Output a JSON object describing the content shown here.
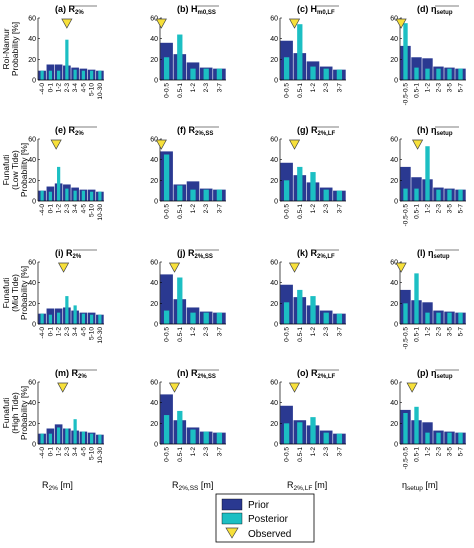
{
  "colors": {
    "prior": "#2a3991",
    "posterior": "#1cbfc3",
    "observed": "#f7e03a",
    "observed_stroke": "#444444"
  },
  "row_labels": [
    [
      "Roi-Namur",
      "Probability [%]"
    ],
    [
      "Funafuti",
      "(Low Tide)",
      "Probability [%]"
    ],
    [
      "Funafuti",
      "(Mid Tide)",
      "Probability [%]"
    ],
    [
      "Funafuti",
      "(High Tide)",
      "Probability [%]"
    ]
  ],
  "x_axis_labels": [
    "R2% [m]",
    "R2%,SS [m]",
    "R2%,LF [m]",
    "ηsetup [m]"
  ],
  "legend": {
    "prior": "Prior",
    "posterior": "Posterior",
    "observed": "Observed"
  },
  "chart_data": [
    {
      "type": "bar",
      "title": "(a) R2%",
      "ylim": [
        0,
        60
      ],
      "yticks": [
        0,
        20,
        40,
        60
      ],
      "categories": [
        "-4-0",
        "0-1",
        "1-2",
        "2-3",
        "3-4",
        "4-5",
        "5-10",
        "10-30"
      ],
      "series": [
        {
          "name": "Prior",
          "values": [
            9,
            15,
            15,
            14,
            12,
            11,
            10,
            9
          ]
        },
        {
          "name": "Posterior",
          "values": [
            9,
            9,
            9,
            39,
            10,
            9,
            9,
            9
          ]
        }
      ],
      "observed": 3.5
    },
    {
      "type": "bar",
      "title": "(b) Hm0,SS",
      "ylim": [
        0,
        60
      ],
      "yticks": [
        0,
        20,
        40,
        60
      ],
      "categories": [
        "0-0.5",
        "0.5-1",
        "1-2",
        "2-3",
        "3-7"
      ],
      "series": [
        {
          "name": "Prior",
          "values": [
            36,
            25,
            17,
            12,
            11
          ]
        },
        {
          "name": "Posterior",
          "values": [
            22,
            44,
            11,
            11,
            11
          ]
        }
      ],
      "observed": 0.1
    },
    {
      "type": "bar",
      "title": "(c) Hm0,LF",
      "ylim": [
        0,
        60
      ],
      "yticks": [
        0,
        20,
        40,
        60
      ],
      "categories": [
        "0-0.5",
        "0.5-1",
        "1-2",
        "2-3",
        "3-7"
      ],
      "series": [
        {
          "name": "Prior",
          "values": [
            38,
            26,
            18,
            13,
            10
          ]
        },
        {
          "name": "Posterior",
          "values": [
            22,
            54,
            13,
            11,
            10
          ]
        }
      ],
      "observed": 1.1
    },
    {
      "type": "bar",
      "title": "(d) ηsetup",
      "ylim": [
        0,
        60
      ],
      "yticks": [
        0,
        20,
        40,
        60
      ],
      "categories": [
        "-0.5-0.5",
        "0.5-1",
        "1-2",
        "2-3",
        "3-5",
        "5-7"
      ],
      "series": [
        {
          "name": "Prior",
          "values": [
            33,
            22,
            21,
            13,
            12,
            11
          ]
        },
        {
          "name": "Posterior",
          "values": [
            55,
            12,
            11,
            11,
            11,
            11
          ]
        }
      ],
      "observed": 0.1
    },
    {
      "type": "bar",
      "title": "(e) R2%",
      "ylim": [
        0,
        60
      ],
      "yticks": [
        0,
        20,
        40,
        60
      ],
      "categories": [
        "-4-0",
        "0-1",
        "1-2",
        "2-3",
        "3-4",
        "4-5",
        "5-10",
        "10-30"
      ],
      "series": [
        {
          "name": "Prior",
          "values": [
            10,
            14,
            17,
            16,
            13,
            11,
            11,
            9
          ]
        },
        {
          "name": "Posterior",
          "values": [
            10,
            9,
            33,
            12,
            10,
            10,
            9,
            9
          ]
        }
      ],
      "observed": 2.2
    },
    {
      "type": "bar",
      "title": "(f) R2%,SS",
      "ylim": [
        0,
        60
      ],
      "yticks": [
        0,
        20,
        40,
        60
      ],
      "categories": [
        "0-0.5",
        "0.5-1",
        "1-2",
        "2-3",
        "3-7"
      ],
      "series": [
        {
          "name": "Prior",
          "values": [
            48,
            16,
            19,
            12,
            11
          ]
        },
        {
          "name": "Posterior",
          "values": [
            45,
            15,
            11,
            11,
            11
          ]
        }
      ],
      "observed": 0.1
    },
    {
      "type": "bar",
      "title": "(g) R2%,LF",
      "ylim": [
        0,
        60
      ],
      "yticks": [
        0,
        20,
        40,
        60
      ],
      "categories": [
        "0-0.5",
        "0.5-1",
        "1-2",
        "2-3",
        "3-7"
      ],
      "series": [
        {
          "name": "Prior",
          "values": [
            37,
            25,
            18,
            13,
            10
          ]
        },
        {
          "name": "Posterior",
          "values": [
            20,
            33,
            28,
            11,
            10
          ]
        }
      ],
      "observed": 1.1
    },
    {
      "type": "bar",
      "title": "(h) ηsetup",
      "ylim": [
        0,
        60
      ],
      "yticks": [
        0,
        20,
        40,
        60
      ],
      "categories": [
        "-0.5-0.5",
        "0.5-1",
        "1-2",
        "2-3",
        "3-5",
        "5-7"
      ],
      "series": [
        {
          "name": "Prior",
          "values": [
            33,
            23,
            21,
            13,
            12,
            11
          ]
        },
        {
          "name": "Posterior",
          "values": [
            12,
            12,
            53,
            11,
            11,
            11
          ]
        }
      ],
      "observed": 1.6
    },
    {
      "type": "bar",
      "title": "(i) R2%",
      "ylim": [
        0,
        60
      ],
      "yticks": [
        0,
        20,
        40,
        60
      ],
      "categories": [
        "-4-0",
        "0-1",
        "1-2",
        "2-3",
        "3-4",
        "4-5",
        "5-10",
        "10-30"
      ],
      "series": [
        {
          "name": "Prior",
          "values": [
            10,
            15,
            15,
            16,
            13,
            11,
            11,
            9
          ]
        },
        {
          "name": "Posterior",
          "values": [
            10,
            9,
            11,
            27,
            18,
            10,
            9,
            9
          ]
        }
      ],
      "observed": 3.1
    },
    {
      "type": "bar",
      "title": "(j) R2%,SS",
      "ylim": [
        0,
        60
      ],
      "yticks": [
        0,
        20,
        40,
        60
      ],
      "categories": [
        "0-0.5",
        "0.5-1",
        "1-2",
        "2-3",
        "3-7"
      ],
      "series": [
        {
          "name": "Prior",
          "values": [
            48,
            24,
            16,
            12,
            11
          ]
        },
        {
          "name": "Posterior",
          "values": [
            13,
            45,
            11,
            11,
            11
          ]
        }
      ],
      "observed": 1.1
    },
    {
      "type": "bar",
      "title": "(k) R2%,LF",
      "ylim": [
        0,
        60
      ],
      "yticks": [
        0,
        20,
        40,
        60
      ],
      "categories": [
        "0-0.5",
        "0.5-1",
        "1-2",
        "2-3",
        "3-7"
      ],
      "series": [
        {
          "name": "Prior",
          "values": [
            38,
            26,
            18,
            13,
            10
          ]
        },
        {
          "name": "Posterior",
          "values": [
            21,
            33,
            27,
            11,
            10
          ]
        }
      ],
      "observed": 1.1
    },
    {
      "type": "bar",
      "title": "(l) ηsetup",
      "ylim": [
        0,
        60
      ],
      "yticks": [
        0,
        20,
        40,
        60
      ],
      "categories": [
        "-0.5-0.5",
        "0.5-1",
        "1-2",
        "2-3",
        "3-5",
        "5-7"
      ],
      "series": [
        {
          "name": "Prior",
          "values": [
            33,
            23,
            21,
            13,
            12,
            11
          ]
        },
        {
          "name": "Posterior",
          "values": [
            20,
            49,
            11,
            11,
            11,
            11
          ]
        }
      ],
      "observed": 0.1
    },
    {
      "type": "bar",
      "title": "(m) R2%",
      "ylim": [
        0,
        60
      ],
      "yticks": [
        0,
        20,
        40,
        60
      ],
      "categories": [
        "-4-0",
        "0-1",
        "1-2",
        "2-3",
        "3-4",
        "4-5",
        "5-10",
        "10-30"
      ],
      "series": [
        {
          "name": "Prior",
          "values": [
            10,
            15,
            19,
            15,
            13,
            12,
            11,
            9
          ]
        },
        {
          "name": "Posterior",
          "values": [
            10,
            10,
            16,
            15,
            24,
            12,
            10,
            9
          ]
        }
      ],
      "observed": 3.0
    },
    {
      "type": "bar",
      "title": "(n) R2%,SS",
      "ylim": [
        0,
        60
      ],
      "yticks": [
        0,
        20,
        40,
        60
      ],
      "categories": [
        "0-0.5",
        "0.5-1",
        "1-2",
        "2-3",
        "3-7"
      ],
      "series": [
        {
          "name": "Prior",
          "values": [
            48,
            23,
            16,
            12,
            11
          ]
        },
        {
          "name": "Posterior",
          "values": [
            28,
            32,
            14,
            12,
            11
          ]
        }
      ],
      "observed": 1.1
    },
    {
      "type": "bar",
      "title": "(o) R2%,LF",
      "ylim": [
        0,
        60
      ],
      "yticks": [
        0,
        20,
        40,
        60
      ],
      "categories": [
        "0-0.5",
        "0.5-1",
        "1-2",
        "2-3",
        "3-7"
      ],
      "series": [
        {
          "name": "Prior",
          "values": [
            37,
            23,
            18,
            13,
            10
          ]
        },
        {
          "name": "Posterior",
          "values": [
            20,
            21,
            26,
            11,
            10
          ]
        }
      ],
      "observed": 1.1
    },
    {
      "type": "bar",
      "title": "(p) ηsetup",
      "ylim": [
        0,
        60
      ],
      "yticks": [
        0,
        20,
        40,
        60
      ],
      "categories": [
        "-0.5-0.5",
        "0.5-1",
        "1-2",
        "2-3",
        "3-5",
        "5-7"
      ],
      "series": [
        {
          "name": "Prior",
          "values": [
            33,
            23,
            21,
            13,
            12,
            11
          ]
        },
        {
          "name": "Posterior",
          "values": [
            30,
            36,
            11,
            11,
            11,
            11
          ]
        }
      ],
      "observed": 1.1
    }
  ]
}
